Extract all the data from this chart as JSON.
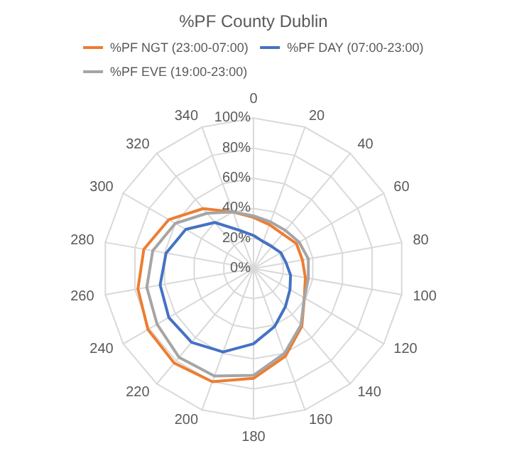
{
  "chart_data": {
    "type": "radar",
    "title": "%PF County Dublin",
    "categories": [
      "0",
      "20",
      "40",
      "60",
      "80",
      "100",
      "120",
      "140",
      "160",
      "180",
      "200",
      "220",
      "240",
      "260",
      "280",
      "300",
      "320",
      "340"
    ],
    "series": [
      {
        "name": "%PF NGT (23:00-07:00)",
        "color": "#ed7d31",
        "values": [
          34,
          31,
          30,
          33,
          33,
          35,
          39,
          50,
          62,
          73,
          80,
          82,
          81,
          78,
          74,
          65,
          52,
          40
        ]
      },
      {
        "name": "%PF DAY (07:00-23:00)",
        "color": "#4472c4",
        "values": [
          22,
          19,
          19,
          21,
          22,
          25,
          28,
          33,
          41,
          50,
          59,
          64,
          65,
          63,
          59,
          52,
          40,
          27
        ]
      },
      {
        "name": "%PF EVE (19:00-23:00)",
        "color": "#a5a5a5",
        "values": [
          35,
          33,
          33,
          35,
          37,
          37,
          39,
          49,
          60,
          71,
          76,
          77,
          74,
          72,
          68,
          60,
          48,
          40
        ]
      }
    ],
    "ylim": [
      0,
      100
    ],
    "yticks": [
      {
        "value": 0,
        "label": "0%"
      },
      {
        "value": 20,
        "label": "20%"
      },
      {
        "value": 40,
        "label": "40%"
      },
      {
        "value": 60,
        "label": "60%"
      },
      {
        "value": 80,
        "label": "80%"
      },
      {
        "value": 100,
        "label": "100%"
      }
    ],
    "grid": true,
    "legend": "top",
    "marker": "none",
    "line_style": "solid"
  }
}
